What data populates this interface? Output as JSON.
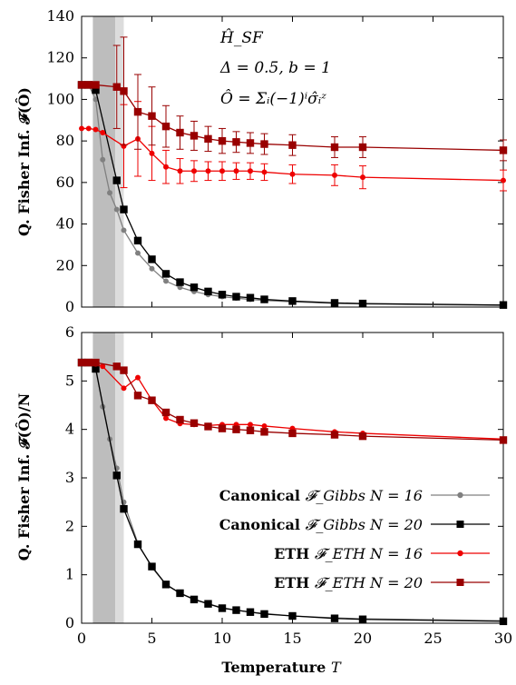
{
  "colors": {
    "canonical_n16": "#808080",
    "canonical_n20": "#000000",
    "eth_n16": "#ee0000",
    "eth_n20": "#990000",
    "shade_dark": "#bdbdbd",
    "shade_light": "#dcdcdc"
  },
  "xlabel": {
    "bold": "Temperature",
    "var": "T"
  },
  "annotation": {
    "hamiltonian": "Ĥ_SF",
    "params": "Δ = 0.5, b = 1",
    "operator": "Ô = Σᵢ(−1)ⁱσ̂ᵢᶻ"
  },
  "legend": [
    {
      "bold": "Canonical",
      "rest": "𝓕_Gibbs  N = 16"
    },
    {
      "bold": "Canonical",
      "rest": "𝓕_Gibbs  N = 20"
    },
    {
      "bold": "ETH",
      "rest": "𝓕_ETH  N = 16"
    },
    {
      "bold": "ETH",
      "rest": "𝓕_ETH  N = 20"
    }
  ],
  "chart_data": [
    {
      "type": "line",
      "ylabel": "Q. Fisher Inf. 𝓕(Ô)",
      "xlabel": "",
      "xlim": [
        0,
        30
      ],
      "ylim": [
        0,
        140
      ],
      "xticks": [
        0,
        5,
        10,
        15,
        20,
        25,
        30
      ],
      "yticks": [
        0,
        20,
        40,
        60,
        80,
        100,
        120,
        140
      ],
      "shaded_bands": [
        {
          "x0": 0.8,
          "x1": 2.4,
          "shade": "dark"
        },
        {
          "x0": 2.4,
          "x1": 3.0,
          "shade": "light"
        }
      ],
      "series": [
        {
          "name": "Canonical 𝓕_Gibbs N = 16",
          "marker": "circle",
          "x": [
            0,
            0.5,
            1,
            1.5,
            2,
            2.5,
            3,
            4,
            5,
            6,
            7,
            8,
            9,
            10,
            11,
            12,
            13,
            15,
            18,
            20,
            30
          ],
          "y": [
            107,
            107,
            100,
            71,
            55,
            47,
            37,
            26,
            18.5,
            12.5,
            9.5,
            7.5,
            6,
            5,
            4.3,
            3.7,
            3.2,
            2.5,
            1.8,
            1.5,
            0.8
          ]
        },
        {
          "name": "Canonical 𝓕_Gibbs N = 20",
          "marker": "square",
          "x": [
            0,
            0.5,
            1,
            2.5,
            3,
            4,
            5,
            6,
            7,
            8,
            9,
            10,
            11,
            12,
            13,
            15,
            18,
            20,
            30
          ],
          "y": [
            107,
            107,
            104.5,
            61,
            47,
            32,
            23,
            16,
            12,
            9.5,
            7.5,
            6,
            5,
            4.5,
            3.7,
            2.9,
            2,
            1.7,
            1
          ]
        },
        {
          "name": "ETH 𝓕_ETH N = 16",
          "marker": "circle",
          "x": [
            0,
            0.5,
            1,
            1.5,
            3,
            4,
            5,
            6,
            7,
            8,
            9,
            10,
            11,
            12,
            13,
            15,
            18,
            20,
            30
          ],
          "y": [
            86,
            86,
            85.5,
            84,
            77.5,
            81,
            74,
            67.5,
            65.5,
            65.5,
            65.5,
            65.5,
            65.5,
            65.5,
            65,
            64,
            63.5,
            62.5,
            61
          ],
          "err": [
            0,
            0,
            0,
            0,
            20,
            18,
            13,
            8,
            6,
            5,
            4.5,
            4.5,
            4,
            4,
            4,
            4.5,
            5,
            5.5,
            5
          ]
        },
        {
          "name": "ETH 𝓕_ETH N = 20",
          "marker": "square",
          "x": [
            0,
            0.5,
            1,
            2.5,
            3,
            4,
            5,
            6,
            7,
            8,
            9,
            10,
            11,
            12,
            13,
            15,
            18,
            20,
            30
          ],
          "y": [
            107,
            107,
            107,
            106,
            104,
            94,
            92,
            87,
            84,
            82.5,
            81,
            80,
            79.5,
            79,
            78.5,
            78,
            77,
            77,
            75.5
          ],
          "err": [
            0,
            0,
            0,
            20,
            26,
            18,
            14,
            10,
            8,
            7,
            6,
            6,
            5,
            5,
            5,
            5,
            5,
            5,
            5
          ]
        }
      ]
    },
    {
      "type": "line",
      "ylabel": "Q. Fisher Inf. 𝓕(Ô)/N",
      "xlabel": "Temperature T",
      "xlim": [
        0,
        30
      ],
      "ylim": [
        0,
        6
      ],
      "xticks": [
        0,
        5,
        10,
        15,
        20,
        25,
        30
      ],
      "yticks": [
        0,
        1,
        2,
        3,
        4,
        5,
        6
      ],
      "shaded_bands": [
        {
          "x0": 0.8,
          "x1": 2.4,
          "shade": "dark"
        },
        {
          "x0": 2.4,
          "x1": 3.0,
          "shade": "light"
        }
      ],
      "series": [
        {
          "name": "Canonical 𝓕_Gibbs N = 16",
          "marker": "circle",
          "x": [
            0,
            0.5,
            1,
            1.5,
            2,
            2.5,
            3,
            4,
            5,
            6,
            7,
            8,
            9,
            10,
            11,
            12,
            13,
            15,
            18,
            20,
            30
          ],
          "y": [
            5.38,
            5.38,
            5.3,
            4.47,
            3.8,
            3.2,
            2.5,
            1.65,
            1.15,
            0.8,
            0.62,
            0.5,
            0.4,
            0.32,
            0.27,
            0.23,
            0.2,
            0.15,
            0.11,
            0.09,
            0.05
          ]
        },
        {
          "name": "Canonical 𝓕_Gibbs N = 20",
          "marker": "square",
          "x": [
            0,
            0.5,
            1,
            2.5,
            3,
            4,
            5,
            6,
            7,
            8,
            9,
            10,
            11,
            12,
            13,
            15,
            18,
            20,
            30
          ],
          "y": [
            5.38,
            5.38,
            5.25,
            3.05,
            2.36,
            1.63,
            1.17,
            0.8,
            0.62,
            0.49,
            0.4,
            0.31,
            0.27,
            0.23,
            0.19,
            0.15,
            0.1,
            0.08,
            0.04
          ]
        },
        {
          "name": "ETH 𝓕_ETH N = 16",
          "marker": "circle",
          "x": [
            0,
            0.5,
            1,
            1.5,
            3,
            4,
            5,
            6,
            7,
            8,
            9,
            10,
            11,
            12,
            13,
            15,
            18,
            20,
            30
          ],
          "y": [
            5.38,
            5.38,
            5.35,
            5.3,
            4.85,
            5.07,
            4.6,
            4.23,
            4.12,
            4.1,
            4.08,
            4.1,
            4.1,
            4.1,
            4.07,
            4.02,
            3.95,
            3.92,
            3.8
          ]
        },
        {
          "name": "ETH 𝓕_ETH N = 20",
          "marker": "square",
          "x": [
            0,
            0.5,
            1,
            2.5,
            3,
            4,
            5,
            6,
            7,
            8,
            9,
            10,
            11,
            12,
            13,
            15,
            18,
            20,
            30
          ],
          "y": [
            5.38,
            5.38,
            5.38,
            5.3,
            5.22,
            4.7,
            4.6,
            4.35,
            4.2,
            4.13,
            4.06,
            4.02,
            4.0,
            3.98,
            3.95,
            3.92,
            3.89,
            3.86,
            3.78
          ]
        }
      ]
    }
  ]
}
